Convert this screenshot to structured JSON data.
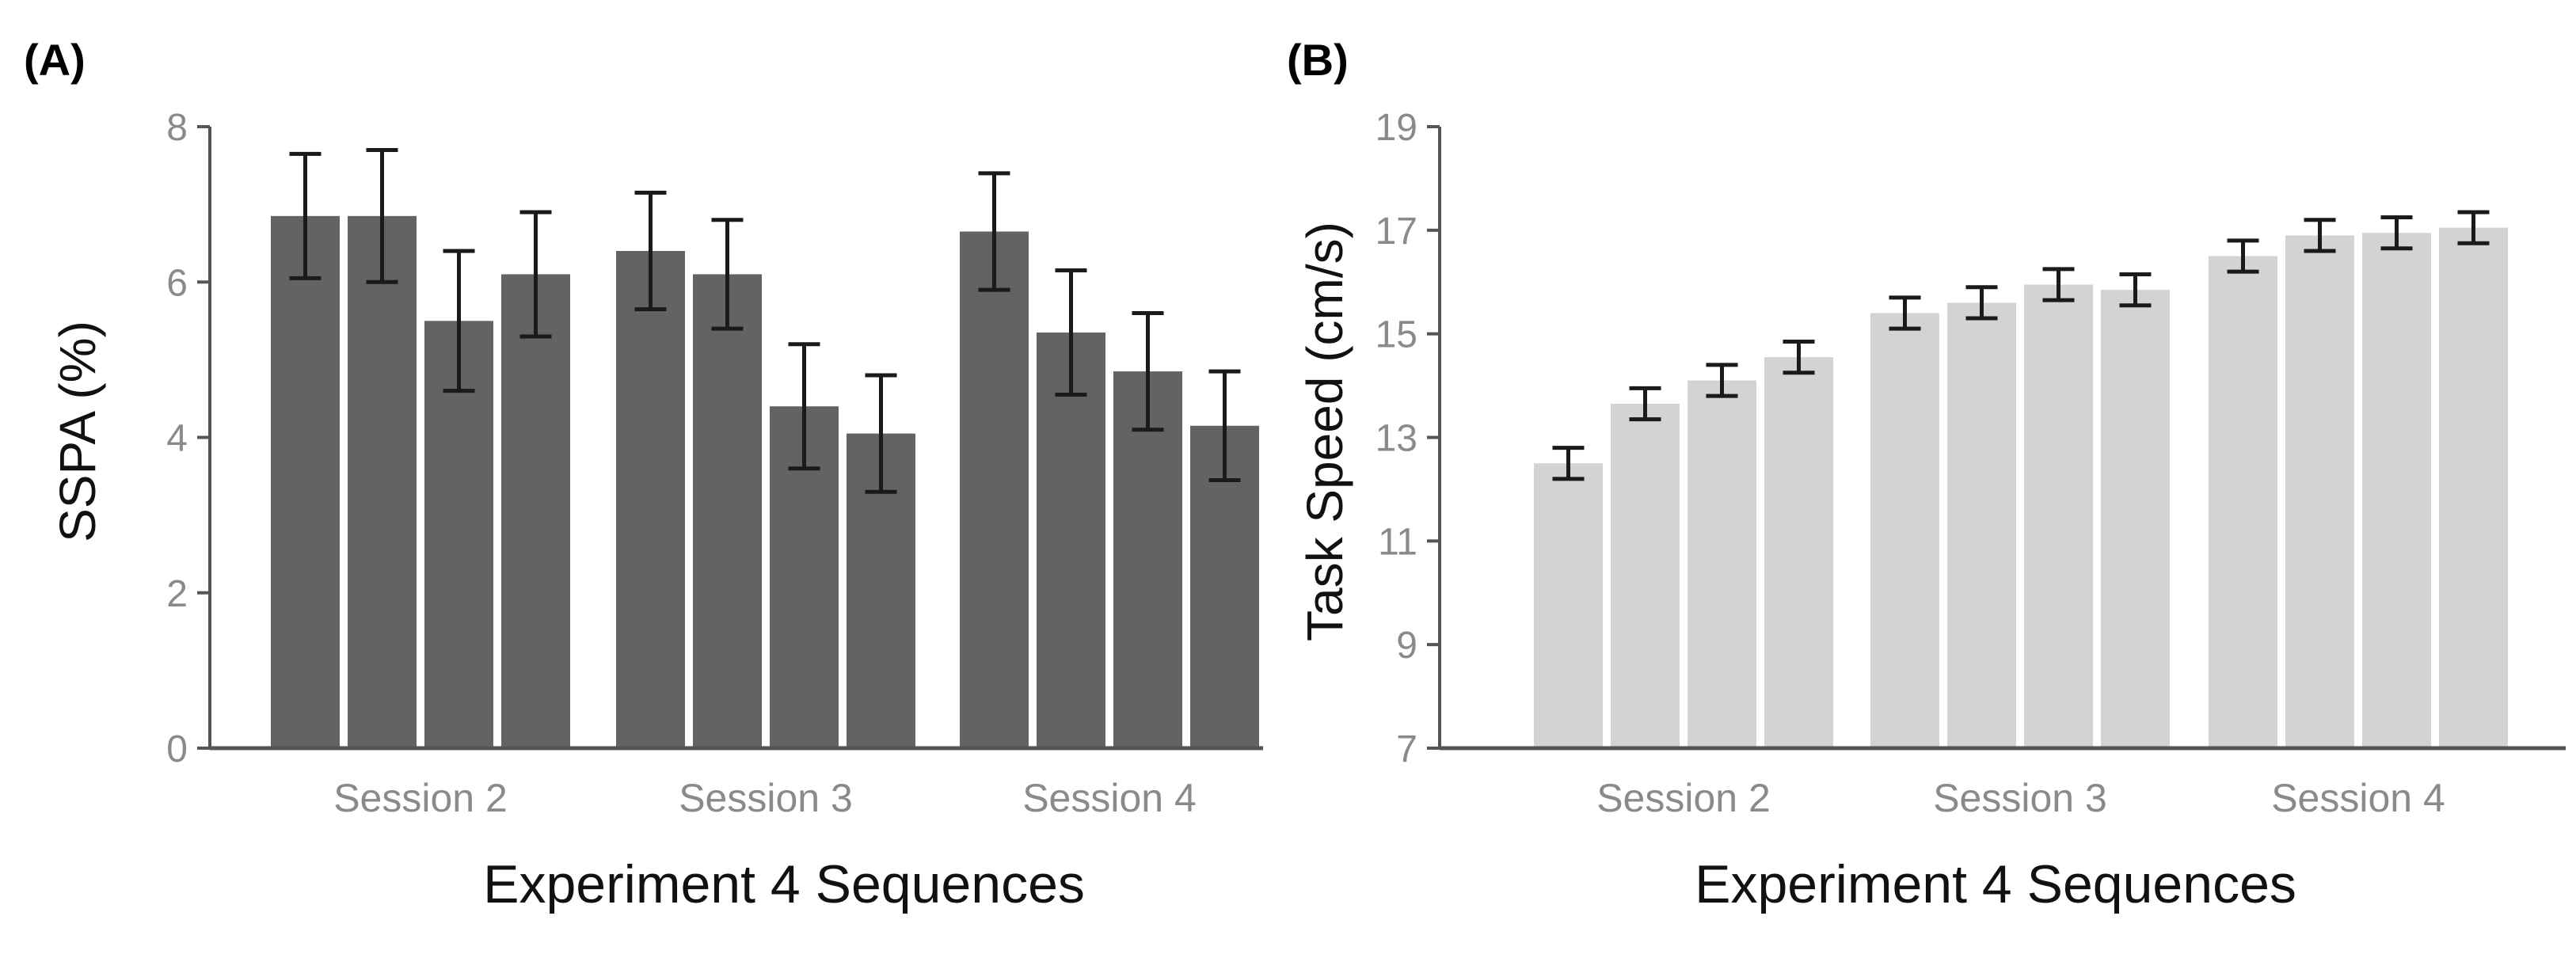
{
  "chart_data": [
    {
      "type": "bar",
      "panel_label": "(A)",
      "title": "",
      "xlabel": "Experiment 4 Sequences",
      "ylabel": "SSPA (%)",
      "categories": [
        "Session 2",
        "Session 3",
        "Session 4"
      ],
      "bars_per_category": 4,
      "ylim": [
        0,
        8
      ],
      "yticks": [
        "0",
        "2",
        "4",
        "6",
        "8"
      ],
      "bar_color": "#636363",
      "values": [
        [
          6.85,
          6.85,
          5.5,
          6.1
        ],
        [
          6.4,
          6.1,
          4.4,
          4.05
        ],
        [
          6.65,
          5.35,
          4.85,
          4.15
        ]
      ],
      "errors": [
        [
          0.8,
          0.85,
          0.9,
          0.8
        ],
        [
          0.75,
          0.7,
          0.8,
          0.75
        ],
        [
          0.75,
          0.8,
          0.75,
          0.7
        ]
      ]
    },
    {
      "type": "bar",
      "panel_label": "(B)",
      "title": "",
      "xlabel": "Experiment 4 Sequences",
      "ylabel": "Task Speed (cm/s)",
      "categories": [
        "Session 2",
        "Session 3",
        "Session 4"
      ],
      "bars_per_category": 4,
      "ylim": [
        7,
        19
      ],
      "yticks": [
        "7",
        "9",
        "11",
        "13",
        "15",
        "17",
        "19"
      ],
      "bar_color": "#d3d3d3",
      "values": [
        [
          12.5,
          13.65,
          14.1,
          14.55
        ],
        [
          15.4,
          15.6,
          15.95,
          15.85
        ],
        [
          16.5,
          16.9,
          16.95,
          17.05
        ]
      ],
      "errors": [
        [
          0.3,
          0.3,
          0.3,
          0.3
        ],
        [
          0.3,
          0.3,
          0.3,
          0.3
        ],
        [
          0.3,
          0.3,
          0.3,
          0.3
        ]
      ]
    }
  ]
}
